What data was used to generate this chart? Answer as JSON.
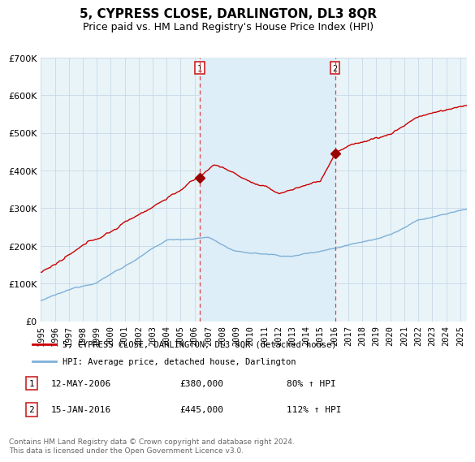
{
  "title": "5, CYPRESS CLOSE, DARLINGTON, DL3 8QR",
  "subtitle": "Price paid vs. HM Land Registry's House Price Index (HPI)",
  "ylim": [
    0,
    700000
  ],
  "yticks": [
    0,
    100000,
    200000,
    300000,
    400000,
    500000,
    600000,
    700000
  ],
  "xlim_start": 1995.0,
  "xlim_end": 2025.5,
  "sale1_year": 2006.36,
  "sale1_price": 380000,
  "sale2_year": 2016.04,
  "sale2_price": 445000,
  "line_color_red": "#cc0000",
  "line_color_blue": "#7fb0d8",
  "vline_color": "#dd4444",
  "shade_color": "#ddeef8",
  "background_color": "#e8f4f8",
  "legend_label_red": "5, CYPRESS CLOSE, DARLINGTON, DL3 8QR (detached house)",
  "legend_label_blue": "HPI: Average price, detached house, Darlington",
  "footnote": "Contains HM Land Registry data © Crown copyright and database right 2024.\nThis data is licensed under the Open Government Licence v3.0.",
  "title_fontsize": 11,
  "subtitle_fontsize": 9
}
